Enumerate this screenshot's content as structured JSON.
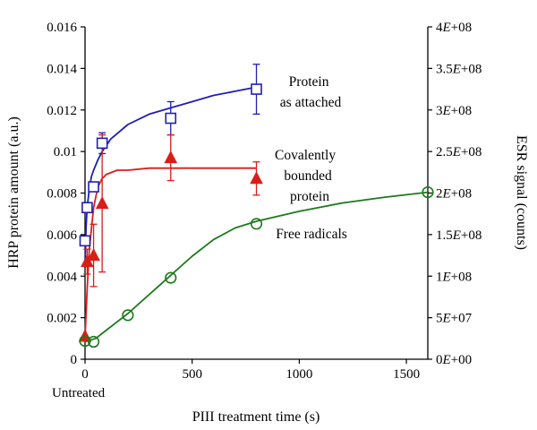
{
  "chart_data": {
    "type": "scatter",
    "xlabel": "PIII treatment time (s)",
    "ylabel_left": "HRP protein amount (a.u.)",
    "ylabel_right": "ESR signal (counts)",
    "xlim": [
      0,
      1600
    ],
    "ylim_left": [
      0,
      0.016
    ],
    "ylim_right": [
      0,
      400000000
    ],
    "x_ticks": [
      0,
      500,
      1000,
      1500
    ],
    "x_tick_labels": [
      "0",
      "500",
      "1000",
      "1500"
    ],
    "y_left_ticks": [
      0,
      0.002,
      0.004,
      0.006,
      0.008,
      0.01,
      0.012,
      0.014,
      0.016
    ],
    "y_left_tick_labels": [
      "0",
      "0.002",
      "0.004",
      "0.006",
      "0.008",
      "0.01",
      "0.012",
      "0.014",
      "0.016"
    ],
    "y_right_ticks": [
      0,
      50000000,
      100000000,
      150000000,
      200000000,
      250000000,
      300000000,
      350000000,
      400000000
    ],
    "y_right_tick_labels": [
      "0E+00",
      "5E+07",
      "1E+08",
      "1.5E+08",
      "2E+08",
      "2.5E+08",
      "3E+08",
      "3.5E+08",
      "4E+08"
    ],
    "untreated_label": "Untreated",
    "series": [
      {
        "name": "Protein as attached",
        "label_lines": [
          "Protein",
          "as attached"
        ],
        "axis": "left",
        "marker": "square-open",
        "color": "#1f1fb4",
        "x": [
          0,
          10,
          40,
          80,
          400,
          800
        ],
        "y": [
          0.0057,
          0.0073,
          0.0083,
          0.0104,
          0.0116,
          0.013
        ],
        "err": [
          0.0,
          0.0,
          0.0,
          0.0005,
          0.0008,
          0.0012
        ],
        "fit_x": [
          0,
          5,
          10,
          20,
          30,
          40,
          60,
          80,
          120,
          200,
          300,
          400,
          500,
          600,
          700,
          800
        ],
        "fit_y": [
          0.0044,
          0.0064,
          0.0073,
          0.0082,
          0.0088,
          0.0091,
          0.0096,
          0.01,
          0.0106,
          0.0113,
          0.0118,
          0.0121,
          0.0124,
          0.0127,
          0.0129,
          0.0131
        ]
      },
      {
        "name": "Covalently bounded protein",
        "label_lines": [
          "Covalently",
          "bounded",
          "protein"
        ],
        "axis": "left",
        "marker": "triangle-filled",
        "color": "#d91e18",
        "x": [
          0,
          10,
          40,
          80,
          400,
          800
        ],
        "y": [
          0.0011,
          0.0047,
          0.005,
          0.0075,
          0.0097,
          0.0087
        ],
        "err": [
          0.0,
          0.0006,
          0.0015,
          0.0033,
          0.0011,
          0.0008
        ],
        "fit_x": [
          0,
          10,
          20,
          40,
          60,
          80,
          100,
          150,
          200,
          300,
          400,
          600,
          800
        ],
        "fit_y": [
          0.001,
          0.0034,
          0.0053,
          0.0073,
          0.0083,
          0.0087,
          0.0089,
          0.0091,
          0.0091,
          0.0092,
          0.0092,
          0.0092,
          0.0092
        ]
      },
      {
        "name": "Free radicals",
        "label_lines": [
          "Free radicals"
        ],
        "axis": "right",
        "marker": "circle-open",
        "color": "#1d7a1d",
        "x": [
          0,
          40,
          200,
          400,
          800,
          1600
        ],
        "y": [
          22000000,
          21000000,
          53000000,
          98000000,
          163000000,
          201000000
        ],
        "fit_x": [
          0,
          50,
          100,
          200,
          300,
          400,
          500,
          600,
          700,
          800,
          1000,
          1200,
          1400,
          1600
        ],
        "fit_y": [
          21000000,
          25000000,
          35000000,
          55000000,
          78000000,
          101000000,
          124000000,
          144000000,
          158000000,
          166000000,
          178000000,
          188000000,
          195000000,
          201000000
        ]
      }
    ]
  }
}
